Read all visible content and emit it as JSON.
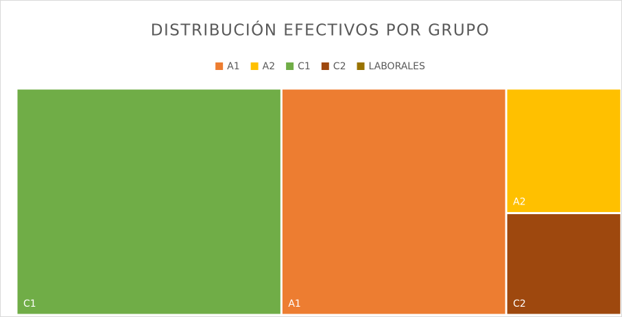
{
  "chart_data": {
    "type": "treemap",
    "title": "DISTRIBUCIÓN EFECTIVOS POR GRUPO",
    "categories": [
      "A1",
      "A2",
      "C1",
      "C2",
      "LABORALES"
    ],
    "values": [
      36.9,
      10.4,
      43.5,
      8.5,
      0
    ],
    "colors": [
      "#ED7D31",
      "#FFC000",
      "#70AD47",
      "#9E480E",
      "#997300"
    ],
    "legend": "top"
  }
}
